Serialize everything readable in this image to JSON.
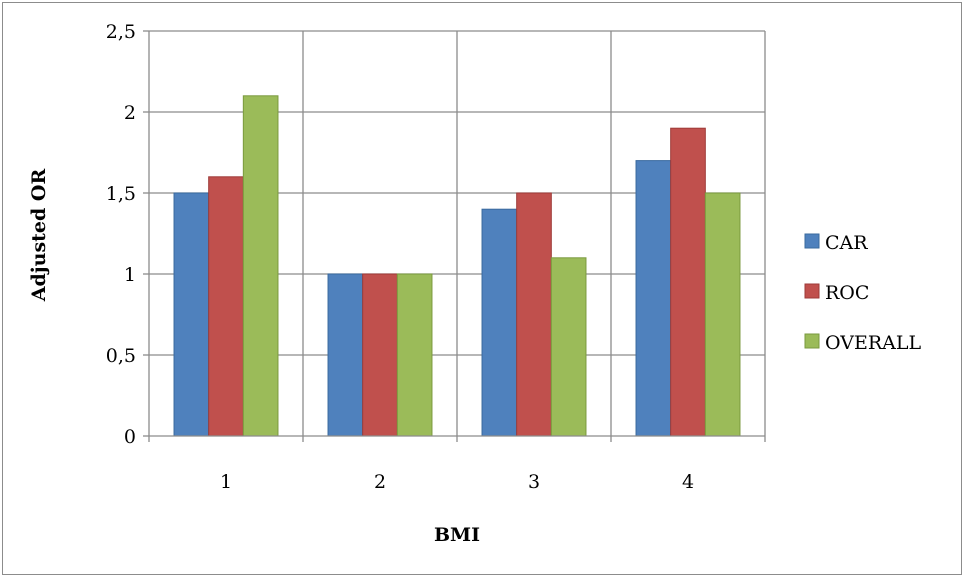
{
  "chart_data": {
    "type": "bar",
    "categories": [
      "1",
      "2",
      "3",
      "4"
    ],
    "series": [
      {
        "name": "CAR",
        "values": [
          1.5,
          1.0,
          1.4,
          1.7
        ],
        "color": "#4f81bd",
        "stroke": "#3a6a9e"
      },
      {
        "name": "ROC",
        "values": [
          1.6,
          1.0,
          1.5,
          1.9
        ],
        "color": "#c0504d",
        "stroke": "#9e3a38"
      },
      {
        "name": "OVERALL",
        "values": [
          2.1,
          1.0,
          1.1,
          1.5
        ],
        "color": "#9bbb59",
        "stroke": "#7a9a3e"
      }
    ],
    "xlabel": "BMI",
    "ylabel": "Adjusted  OR",
    "ylim": [
      0,
      2.5
    ],
    "yticks": [
      "0",
      "0,5",
      "1",
      "1,5",
      "2",
      "2,5"
    ],
    "grid": true,
    "legend_position": "right"
  }
}
